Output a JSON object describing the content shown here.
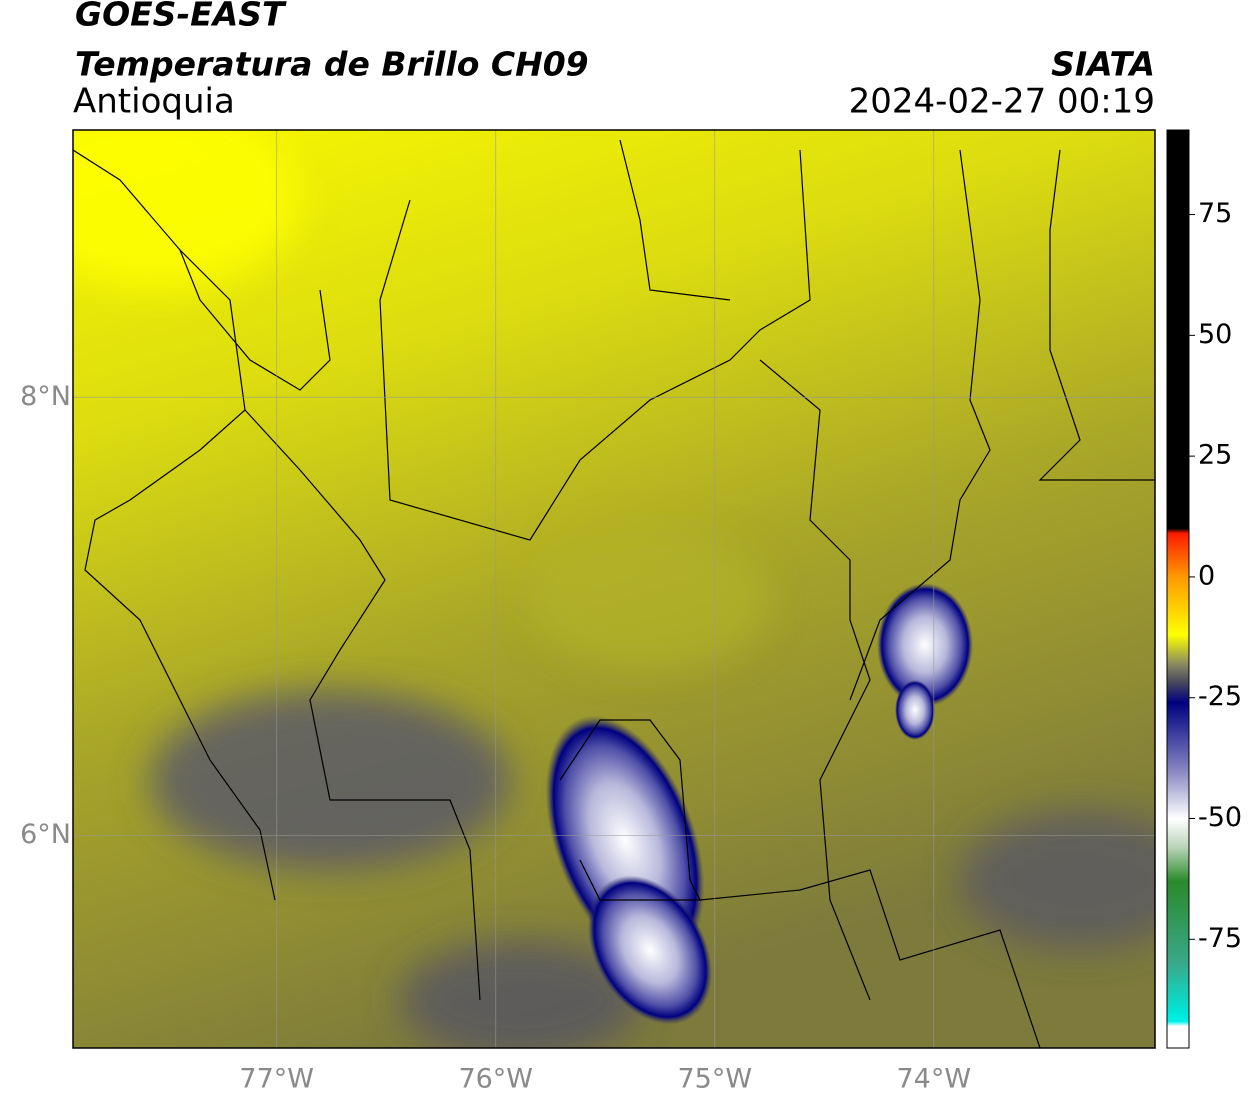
{
  "header": {
    "title": "GOES-EAST",
    "product": "Temperatura de Brillo CH09",
    "region": "Antioquia",
    "source": "SIATA",
    "datetime": "2024-02-27 00:19"
  },
  "map": {
    "xlim": [
      -77.93,
      -72.99
    ],
    "ylim": [
      5.03,
      9.22
    ],
    "xticks": [
      {
        "value": -77,
        "label": "77°W"
      },
      {
        "value": -76,
        "label": "76°W"
      },
      {
        "value": -75,
        "label": "75°W"
      },
      {
        "value": -74,
        "label": "74°W"
      }
    ],
    "yticks": [
      {
        "value": 6,
        "label": "6°N"
      },
      {
        "value": 8,
        "label": "8°N"
      }
    ],
    "grid": true
  },
  "colorbar": {
    "lim": [
      -97.5,
      92.5
    ],
    "ticks": [
      75,
      50,
      25,
      0,
      -25,
      -50,
      -75
    ],
    "stops": [
      {
        "value": 10,
        "color": "#000000"
      },
      {
        "value": 9,
        "color": "#ff1a00"
      },
      {
        "value": 0,
        "color": "#ff9900"
      },
      {
        "value": -12,
        "color": "#ffff00"
      },
      {
        "value": -18,
        "color": "#8a8a60"
      },
      {
        "value": -22,
        "color": "#45455e"
      },
      {
        "value": -26,
        "color": "#000080"
      },
      {
        "value": -40,
        "color": "#8585c2"
      },
      {
        "value": -50,
        "color": "#ffffff"
      },
      {
        "value": -56,
        "color": "#b8d4b8"
      },
      {
        "value": -63,
        "color": "#2a8a2a"
      },
      {
        "value": -80,
        "color": "#3aa88a"
      },
      {
        "value": -90,
        "color": "#00e6d6"
      },
      {
        "value": -92,
        "color": "#00f0e8"
      },
      {
        "value": -93,
        "color": "#ffffff"
      }
    ]
  }
}
